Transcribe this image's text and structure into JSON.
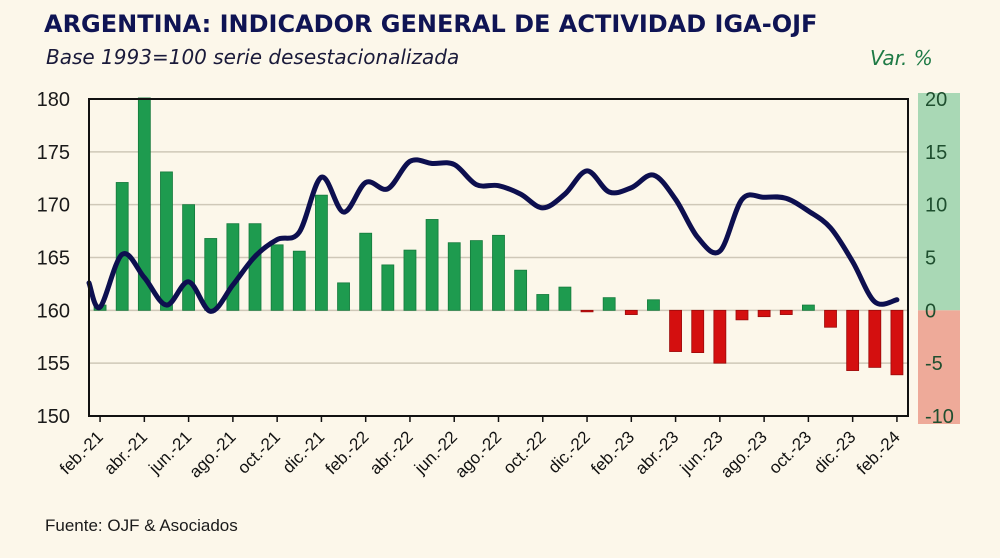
{
  "chart_data": {
    "type": "bar+line",
    "title": "ARGENTINA: INDICADOR GENERAL DE ACTIVIDAD IGA-OJF",
    "subtitle": "Base 1993=100 serie desestacionalizada",
    "right_axis_label": "Var. %",
    "source": "Fuente: OJF & Asociados",
    "months": [
      "feb.-21",
      "mar.-21",
      "abr.-21",
      "may.-21",
      "jun.-21",
      "jul.-21",
      "ago.-21",
      "sep.-21",
      "oct.-21",
      "nov.-21",
      "dic.-21",
      "ene.-22",
      "feb.-22",
      "mar.-22",
      "abr.-22",
      "may.-22",
      "jun.-22",
      "jul.-22",
      "ago.-22",
      "sep.-22",
      "oct.-22",
      "nov.-22",
      "dic.-22",
      "ene.-23",
      "feb.-23",
      "mar.-23",
      "abr.-23",
      "may.-23",
      "jun.-23",
      "jul.-23",
      "ago.-23",
      "sep.-23",
      "oct.-23",
      "nov.-23",
      "dic.-23",
      "ene.-24",
      "feb.-24"
    ],
    "x_tick_labels": [
      "feb.-21",
      "abr.-21",
      "jun.-21",
      "ago.-21",
      "oct.-21",
      "dic.-21",
      "feb.-22",
      "abr.-22",
      "jun.-22",
      "ago.-22",
      "oct.-22",
      "dic.-22",
      "feb.-23",
      "abr.-23",
      "jun.-23",
      "ago.-23",
      "oct.-23",
      "dic.-23",
      "feb.-24"
    ],
    "series": [
      {
        "name": "IGA-OJF (Base 1993=100, desestacionalizada)",
        "type": "line",
        "axis": "left",
        "color": "#0d0f4f",
        "values": [
          160.3,
          165.3,
          163.1,
          160.5,
          162.7,
          159.9,
          162.4,
          165.1,
          166.7,
          167.4,
          172.6,
          169.3,
          172.1,
          171.5,
          174.1,
          173.9,
          173.8,
          171.9,
          171.8,
          171.0,
          169.7,
          171.0,
          173.2,
          171.2,
          171.6,
          172.8,
          170.5,
          166.9,
          165.6,
          170.5,
          170.7,
          170.6,
          169.4,
          167.8,
          164.6,
          160.8,
          161.0
        ]
      },
      {
        "name": "Var. %",
        "type": "bar",
        "axis": "right",
        "positive_color": "#1e9b4f",
        "negative_color": "#d40f0f",
        "values": [
          0.5,
          12.1,
          20.1,
          13.1,
          10.0,
          6.8,
          8.2,
          8.2,
          6.2,
          5.6,
          10.9,
          2.6,
          7.3,
          4.3,
          5.7,
          8.6,
          6.4,
          6.6,
          7.1,
          3.8,
          1.5,
          2.2,
          -0.1,
          1.2,
          -0.4,
          1.0,
          -3.9,
          -4.0,
          -5.0,
          -0.9,
          -0.6,
          -0.4,
          0.5,
          -1.6,
          -5.7,
          -5.4,
          -6.1
        ]
      }
    ],
    "left_axis": {
      "ylim": [
        150,
        180
      ],
      "ticks": [
        150,
        155,
        160,
        165,
        170,
        175,
        180
      ]
    },
    "right_axis": {
      "ylim": [
        -10,
        20
      ],
      "ticks": [
        -10,
        -5,
        0,
        5,
        10,
        15,
        20
      ],
      "positive_band_color": "#a9d8b5",
      "negative_band_color": "#eeaa99"
    },
    "grid": true,
    "legend": "none"
  }
}
